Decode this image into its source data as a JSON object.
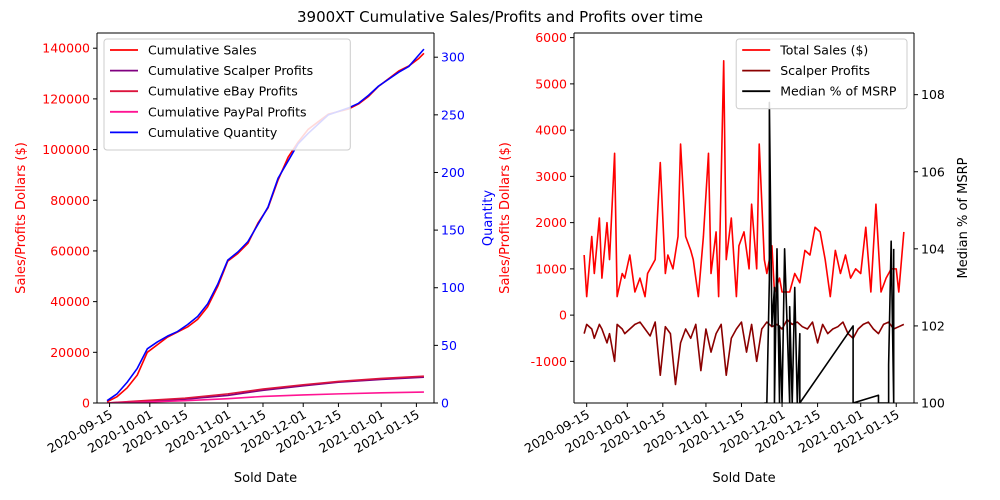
{
  "figure_title": "3900XT Cumulative Sales/Profits and Profits over time",
  "chart_data": [
    {
      "type": "line",
      "title": "",
      "xlabel": "Sold Date",
      "ylabel": "Sales/Profits Dollars ($)",
      "y2label": "Quantity",
      "x_type": "date",
      "xlim": [
        "2020-09-10",
        "2021-01-22"
      ],
      "ylim": [
        0,
        146000
      ],
      "y2lim": [
        0,
        321
      ],
      "xticks": [
        "2020-09-15",
        "2020-10-01",
        "2020-10-15",
        "2020-11-01",
        "2020-11-15",
        "2020-12-01",
        "2020-12-15",
        "2021-01-01",
        "2021-01-15"
      ],
      "yticks": [
        0,
        20000,
        40000,
        60000,
        80000,
        100000,
        120000,
        140000
      ],
      "y2ticks": [
        0,
        50,
        100,
        150,
        200,
        250,
        300
      ],
      "ytick_color": "#ff0000",
      "y2tick_color": "#0000ff",
      "legend_position": "upper left",
      "series": [
        {
          "name": "Cumulative Sales",
          "axis": "y",
          "color": "#ff0000",
          "x": [
            "2020-09-14",
            "2020-09-18",
            "2020-09-22",
            "2020-09-26",
            "2020-09-30",
            "2020-10-04",
            "2020-10-08",
            "2020-10-12",
            "2020-10-16",
            "2020-10-20",
            "2020-10-24",
            "2020-10-28",
            "2020-11-01",
            "2020-11-05",
            "2020-11-09",
            "2020-11-13",
            "2020-11-17",
            "2020-11-21",
            "2020-11-25",
            "2020-11-29",
            "2020-12-03",
            "2020-12-07",
            "2020-12-11",
            "2020-12-15",
            "2020-12-19",
            "2020-12-23",
            "2020-12-27",
            "2020-12-31",
            "2021-01-04",
            "2021-01-08",
            "2021-01-12",
            "2021-01-16",
            "2021-01-18"
          ],
          "values": [
            500,
            2500,
            6000,
            11000,
            20000,
            23000,
            26000,
            28000,
            30000,
            33000,
            38000,
            46000,
            56000,
            59000,
            63000,
            71000,
            77000,
            88000,
            97000,
            103000,
            108000,
            111000,
            114000,
            115000,
            116000,
            118000,
            121000,
            125000,
            128000,
            131000,
            133000,
            136000,
            138000
          ]
        },
        {
          "name": "Cumulative Scalper Profits",
          "axis": "y",
          "color": "#800080",
          "x": [
            "2020-09-14",
            "2020-09-30",
            "2020-10-15",
            "2020-11-01",
            "2020-11-15",
            "2020-12-01",
            "2020-12-15",
            "2021-01-01",
            "2021-01-18"
          ],
          "values": [
            0,
            700,
            1500,
            3000,
            5000,
            6800,
            8200,
            9300,
            10200
          ]
        },
        {
          "name": "Cumulative eBay Profits",
          "axis": "y",
          "color": "#dc143c",
          "x": [
            "2020-09-14",
            "2020-09-30",
            "2020-10-15",
            "2020-11-01",
            "2020-11-15",
            "2020-12-01",
            "2020-12-15",
            "2021-01-01",
            "2021-01-18"
          ],
          "values": [
            50,
            1000,
            1900,
            3600,
            5500,
            7200,
            8500,
            9700,
            10600
          ]
        },
        {
          "name": "Cumulative PayPal Profits",
          "axis": "y",
          "color": "#ff1493",
          "x": [
            "2020-09-14",
            "2020-09-30",
            "2020-10-15",
            "2020-11-01",
            "2020-11-15",
            "2020-12-01",
            "2020-12-15",
            "2021-01-01",
            "2021-01-18"
          ],
          "values": [
            0,
            400,
            900,
            1700,
            2600,
            3200,
            3600,
            4000,
            4300
          ]
        },
        {
          "name": "Cumulative Quantity",
          "axis": "y2",
          "color": "#0000ff",
          "x": [
            "2020-09-14",
            "2020-09-18",
            "2020-09-22",
            "2020-09-26",
            "2020-09-30",
            "2020-10-04",
            "2020-10-08",
            "2020-10-12",
            "2020-10-16",
            "2020-10-20",
            "2020-10-24",
            "2020-10-28",
            "2020-11-01",
            "2020-11-05",
            "2020-11-09",
            "2020-11-13",
            "2020-11-17",
            "2020-11-21",
            "2020-11-25",
            "2020-11-29",
            "2020-12-03",
            "2020-12-07",
            "2020-12-11",
            "2020-12-15",
            "2020-12-19",
            "2020-12-23",
            "2020-12-27",
            "2020-12-31",
            "2021-01-04",
            "2021-01-08",
            "2021-01-12",
            "2021-01-16",
            "2021-01-18"
          ],
          "values": [
            2,
            8,
            18,
            30,
            47,
            53,
            58,
            62,
            68,
            75,
            86,
            103,
            124,
            131,
            140,
            155,
            170,
            195,
            210,
            225,
            234,
            242,
            250,
            253,
            256,
            260,
            267,
            275,
            281,
            287,
            292,
            302,
            307
          ]
        }
      ]
    },
    {
      "type": "line",
      "title": "",
      "xlabel": "Sold Date",
      "ylabel": "Sales/Profits Dollars ($)",
      "y2label": "Median % of MSRP",
      "x_type": "date",
      "xlim": [
        "2020-09-10",
        "2021-01-22"
      ],
      "ylim": [
        -1900,
        6100
      ],
      "y2lim": [
        100,
        109.6
      ],
      "xticks": [
        "2020-09-15",
        "2020-10-01",
        "2020-10-15",
        "2020-11-01",
        "2020-11-15",
        "2020-12-01",
        "2020-12-15",
        "2021-01-01",
        "2021-01-15"
      ],
      "yticks": [
        -1000,
        0,
        1000,
        2000,
        3000,
        4000,
        5000,
        6000
      ],
      "y2ticks": [
        100,
        102,
        104,
        106,
        108
      ],
      "ytick_color": "#ff0000",
      "y2tick_color": "#000000",
      "legend_position": "upper right",
      "series": [
        {
          "name": "Total Sales ($)",
          "axis": "y",
          "color": "#ff0000",
          "x": [
            "2020-09-14",
            "2020-09-15",
            "2020-09-17",
            "2020-09-18",
            "2020-09-20",
            "2020-09-21",
            "2020-09-23",
            "2020-09-24",
            "2020-09-26",
            "2020-09-27",
            "2020-09-29",
            "2020-09-30",
            "2020-10-02",
            "2020-10-03",
            "2020-10-04",
            "2020-10-06",
            "2020-10-08",
            "2020-10-09",
            "2020-10-12",
            "2020-10-14",
            "2020-10-16",
            "2020-10-17",
            "2020-10-19",
            "2020-10-21",
            "2020-10-22",
            "2020-10-24",
            "2020-10-26",
            "2020-10-27",
            "2020-10-29",
            "2020-10-31",
            "2020-11-02",
            "2020-11-03",
            "2020-11-05",
            "2020-11-06",
            "2020-11-08",
            "2020-11-09",
            "2020-11-11",
            "2020-11-13",
            "2020-11-14",
            "2020-11-16",
            "2020-11-18",
            "2020-11-19",
            "2020-11-21",
            "2020-11-22",
            "2020-11-24",
            "2020-11-25",
            "2020-11-27",
            "2020-11-28",
            "2020-11-30",
            "2020-12-01",
            "2020-12-03",
            "2020-12-04",
            "2020-12-06",
            "2020-12-08",
            "2020-12-10",
            "2020-12-12",
            "2020-12-14",
            "2020-12-16",
            "2020-12-18",
            "2020-12-20",
            "2020-12-22",
            "2020-12-24",
            "2020-12-26",
            "2020-12-28",
            "2020-12-30",
            "2021-01-01",
            "2021-01-03",
            "2021-01-05",
            "2021-01-07",
            "2021-01-09",
            "2021-01-11",
            "2021-01-13",
            "2021-01-15",
            "2021-01-16",
            "2021-01-18"
          ],
          "values": [
            1300,
            400,
            1700,
            900,
            2100,
            800,
            2000,
            1200,
            3500,
            400,
            900,
            800,
            1300,
            900,
            500,
            800,
            400,
            900,
            1200,
            3300,
            900,
            1300,
            1000,
            1700,
            3700,
            1700,
            1400,
            1200,
            400,
            1700,
            3500,
            900,
            1800,
            400,
            5500,
            1200,
            2100,
            400,
            1500,
            1800,
            1000,
            2400,
            1000,
            3700,
            1200,
            900,
            1500,
            500,
            800,
            500,
            500,
            500,
            900,
            700,
            1400,
            1300,
            1900,
            1800,
            1200,
            400,
            1400,
            900,
            1300,
            800,
            1000,
            900,
            1900,
            500,
            2400,
            500,
            800,
            1000,
            1000,
            500,
            1800
          ]
        },
        {
          "name": "Scalper Profits",
          "axis": "y",
          "color": "#8b0000",
          "x": [
            "2020-09-14",
            "2020-09-15",
            "2020-09-17",
            "2020-09-18",
            "2020-09-20",
            "2020-09-21",
            "2020-09-23",
            "2020-09-24",
            "2020-09-26",
            "2020-09-27",
            "2020-09-29",
            "2020-09-30",
            "2020-10-02",
            "2020-10-04",
            "2020-10-06",
            "2020-10-08",
            "2020-10-10",
            "2020-10-12",
            "2020-10-14",
            "2020-10-16",
            "2020-10-18",
            "2020-10-20",
            "2020-10-22",
            "2020-10-24",
            "2020-10-26",
            "2020-10-28",
            "2020-10-30",
            "2020-11-01",
            "2020-11-03",
            "2020-11-05",
            "2020-11-07",
            "2020-11-09",
            "2020-11-11",
            "2020-11-13",
            "2020-11-15",
            "2020-11-17",
            "2020-11-19",
            "2020-11-21",
            "2020-11-23",
            "2020-11-25",
            "2020-11-27",
            "2020-11-29",
            "2020-12-01",
            "2020-12-03",
            "2020-12-05",
            "2020-12-07",
            "2020-12-09",
            "2020-12-11",
            "2020-12-13",
            "2020-12-15",
            "2020-12-17",
            "2020-12-19",
            "2020-12-21",
            "2020-12-23",
            "2020-12-25",
            "2020-12-27",
            "2020-12-29",
            "2020-12-31",
            "2021-01-02",
            "2021-01-04",
            "2021-01-06",
            "2021-01-08",
            "2021-01-10",
            "2021-01-12",
            "2021-01-14",
            "2021-01-16",
            "2021-01-18"
          ],
          "values": [
            -400,
            -200,
            -300,
            -500,
            -200,
            -300,
            -600,
            -400,
            -1000,
            -200,
            -300,
            -400,
            -300,
            -200,
            -150,
            -300,
            -450,
            -150,
            -1300,
            -250,
            -400,
            -1500,
            -600,
            -300,
            -500,
            -200,
            -1200,
            -300,
            -800,
            -400,
            -200,
            -1300,
            -500,
            -300,
            -150,
            -800,
            -200,
            -1000,
            -300,
            -150,
            -250,
            -200,
            -300,
            -100,
            -200,
            -150,
            -250,
            -300,
            -150,
            -600,
            -200,
            -400,
            -300,
            -250,
            -150,
            -400,
            -500,
            -300,
            -200,
            -150,
            -300,
            -400,
            -200,
            -150,
            -300,
            -250,
            -200
          ]
        },
        {
          "name": "Median % of MSRP",
          "axis": "y2",
          "color": "#000000",
          "x": [
            "2020-11-24",
            "2020-11-25",
            "2020-11-26",
            "2020-11-26",
            "2020-11-27",
            "2020-11-28",
            "2020-11-28",
            "2020-11-29",
            "2020-11-30",
            "2020-11-30",
            "2020-12-01",
            "2020-12-02",
            "2020-12-04",
            "2020-12-04",
            "2020-12-05",
            "2020-12-06",
            "2020-12-07",
            "2020-12-08",
            "2020-12-08",
            "2020-12-29",
            "2020-12-29",
            "2021-01-08",
            "2021-01-08",
            "2021-01-12",
            "2021-01-12",
            "2021-01-13",
            "2021-01-14",
            "2021-01-14"
          ],
          "values": [
            100.0,
            100.0,
            103.2,
            107.8,
            102.0,
            103.0,
            100.0,
            104.0,
            100.0,
            102.0,
            100.0,
            104.0,
            100.0,
            102.5,
            100.0,
            103.0,
            100.0,
            101.8,
            100.0,
            102.0,
            100.0,
            100.2,
            100.0,
            100.0,
            101.0,
            104.2,
            100.0,
            104.0
          ]
        }
      ]
    }
  ]
}
